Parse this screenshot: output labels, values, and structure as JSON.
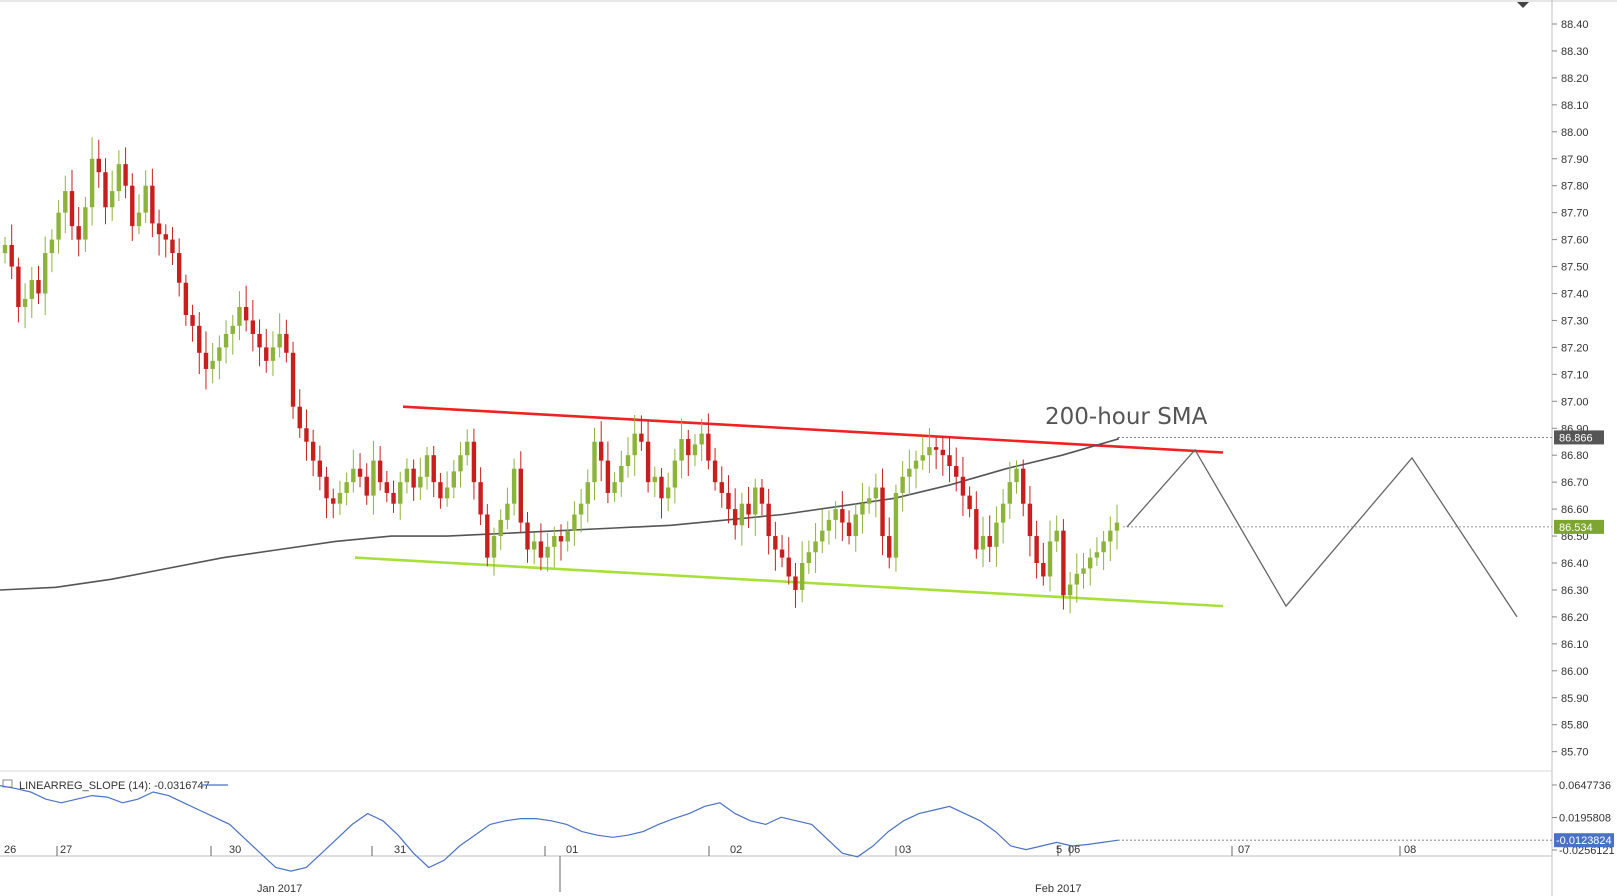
{
  "chart_data": [
    {
      "type": "candlestick",
      "y_axis": {
        "range": [
          85.63,
          88.49
        ],
        "tick_labels": [
          "88.40",
          "88.30",
          "88.20",
          "88.10",
          "88.00",
          "87.90",
          "87.80",
          "87.70",
          "87.60",
          "87.50",
          "87.40",
          "87.30",
          "87.20",
          "87.10",
          "87.00",
          "86.90",
          "86.80",
          "86.70",
          "86.60",
          "86.50",
          "86.40",
          "86.30",
          "86.20",
          "86.10",
          "86.00",
          "85.90",
          "85.80",
          "85.70"
        ]
      },
      "x_axis": {
        "tick_labels": [
          "26",
          "27",
          "30",
          "31",
          "01",
          "02",
          "03",
          "5",
          "06",
          "07",
          "08"
        ],
        "month_labels": [
          "Jan 2017",
          "Feb 2017"
        ]
      },
      "price_tags": [
        {
          "value": 86.866,
          "label": "86.866",
          "color": "#555555"
        },
        {
          "value": 86.534,
          "label": "86.534",
          "color": "#7da530"
        }
      ],
      "annotations": [
        {
          "text": "200-hour SMA"
        }
      ],
      "trendlines": [
        {
          "name": "resistance",
          "color": "#ee2222",
          "points": [
            [
              0,
              86.98
            ],
            [
              1,
              86.81
            ]
          ]
        },
        {
          "name": "support",
          "color": "#a8e03a",
          "points": [
            [
              0,
              86.42
            ],
            [
              1,
              86.24
            ]
          ]
        }
      ],
      "projection": {
        "color": "#666666",
        "values": [
          86.534,
          86.82,
          86.24,
          86.79,
          86.2
        ]
      },
      "sma_200": {
        "color": "#555555",
        "values": [
          86.3,
          86.31,
          86.34,
          86.38,
          86.42,
          86.45,
          86.48,
          86.5,
          86.5,
          86.51,
          86.52,
          86.53,
          86.54,
          86.56,
          86.58,
          86.61,
          86.64,
          86.69,
          86.75,
          86.8,
          86.86
        ]
      },
      "ohlc": {
        "up_color": "#8db43a",
        "down_color": "#c81e1e",
        "start_open": 87.55,
        "closes": [
          87.58,
          87.5,
          87.35,
          87.38,
          87.45,
          87.4,
          87.55,
          87.6,
          87.7,
          87.78,
          87.65,
          87.6,
          87.72,
          87.9,
          87.85,
          87.72,
          87.78,
          87.88,
          87.8,
          87.65,
          87.7,
          87.8,
          87.66,
          87.62,
          87.6,
          87.55,
          87.44,
          87.32,
          87.28,
          87.18,
          87.12,
          87.15,
          87.2,
          87.25,
          87.28,
          87.35,
          87.3,
          87.25,
          87.2,
          87.15,
          87.2,
          87.25,
          87.18,
          86.98,
          86.9,
          86.85,
          86.78,
          86.72,
          86.64,
          86.62,
          86.66,
          86.7,
          86.75,
          86.72,
          86.65,
          86.78,
          86.7,
          86.66,
          86.62,
          86.7,
          86.75,
          86.68,
          86.72,
          86.8,
          86.7,
          86.64,
          86.68,
          86.74,
          86.8,
          86.85,
          86.7,
          86.58,
          86.42,
          86.5,
          86.56,
          86.62,
          86.75,
          86.55,
          86.45,
          86.48,
          86.42,
          86.46,
          86.5,
          86.48,
          86.52,
          86.58,
          86.62,
          86.7,
          86.85,
          86.78,
          86.66,
          86.7,
          86.76,
          86.8,
          86.88,
          86.85,
          86.7,
          86.72,
          86.64,
          86.68,
          86.78,
          86.86,
          86.8,
          86.84,
          86.88,
          86.78,
          86.7,
          86.66,
          86.6,
          86.54,
          86.62,
          86.58,
          86.68,
          86.62,
          86.5,
          86.45,
          86.42,
          86.35,
          86.3,
          86.4,
          86.44,
          86.48,
          86.52,
          86.56,
          86.6,
          86.55,
          86.5,
          86.58,
          86.62,
          86.64,
          86.68,
          86.5,
          86.42,
          86.66,
          86.72,
          86.75,
          86.78,
          86.8,
          86.83,
          86.82,
          86.8,
          86.76,
          86.72,
          86.65,
          86.6,
          86.45,
          86.5,
          86.46,
          86.55,
          86.62,
          86.7,
          86.75,
          86.62,
          86.5,
          86.4,
          86.35,
          86.48,
          86.52,
          86.28,
          86.32,
          86.36,
          86.38,
          86.42,
          86.44,
          86.48,
          86.52,
          86.55
        ]
      }
    },
    {
      "type": "line",
      "title": "LINEARREG_SLOPE (14): -0.0316747",
      "y_tick_labels": [
        "0.0647736",
        "0.0195808",
        "-0.0256121"
      ],
      "y_axis": {
        "range": [
          -0.05,
          0.09
        ]
      },
      "last_value_label": "-0.0123824",
      "series": [
        {
          "color": "#4a72c4",
          "values": [
            0.064,
            0.06,
            0.055,
            0.045,
            0.04,
            0.045,
            0.05,
            0.048,
            0.04,
            0.045,
            0.055,
            0.05,
            0.04,
            0.03,
            0.02,
            0.01,
            -0.01,
            -0.03,
            -0.05,
            -0.055,
            -0.05,
            -0.03,
            -0.01,
            0.01,
            0.025,
            0.015,
            -0.005,
            -0.03,
            -0.05,
            -0.04,
            -0.02,
            -0.005,
            0.01,
            0.015,
            0.018,
            0.018,
            0.015,
            0.01,
            0.0,
            -0.005,
            -0.008,
            -0.005,
            0.0,
            0.01,
            0.018,
            0.025,
            0.035,
            0.04,
            0.025,
            0.015,
            0.01,
            0.02,
            0.015,
            0.01,
            -0.01,
            -0.03,
            -0.035,
            -0.02,
            0.0,
            0.015,
            0.025,
            0.03,
            0.035,
            0.025,
            0.015,
            0.0,
            -0.02,
            -0.025,
            -0.02,
            -0.015,
            -0.02,
            -0.018,
            -0.015,
            -0.012
          ]
        }
      ]
    }
  ]
}
